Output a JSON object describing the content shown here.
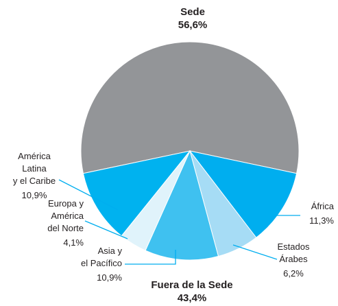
{
  "chart_data": {
    "type": "pie",
    "categories": [
      "Sede",
      "África",
      "Estados Árabes",
      "Asia y\nel Pacífico",
      "Europa y\nAmérica\ndel Norte",
      "América\nLatina\ny el Caribe"
    ],
    "values": [
      56.6,
      11.3,
      6.2,
      10.9,
      4.1,
      10.9
    ],
    "value_labels": [
      "56,6%",
      "11,3%",
      "6,2%",
      "10,9%",
      "4,1%",
      "10,9%"
    ],
    "colors": [
      "#939598",
      "#00aeef",
      "#a6dcf5",
      "#3fc1f0",
      "#e0f3fb",
      "#00b2ef"
    ],
    "annotations": [
      {
        "text": "Fuera de la Sede"
      },
      {
        "text": "43,4%"
      }
    ]
  }
}
